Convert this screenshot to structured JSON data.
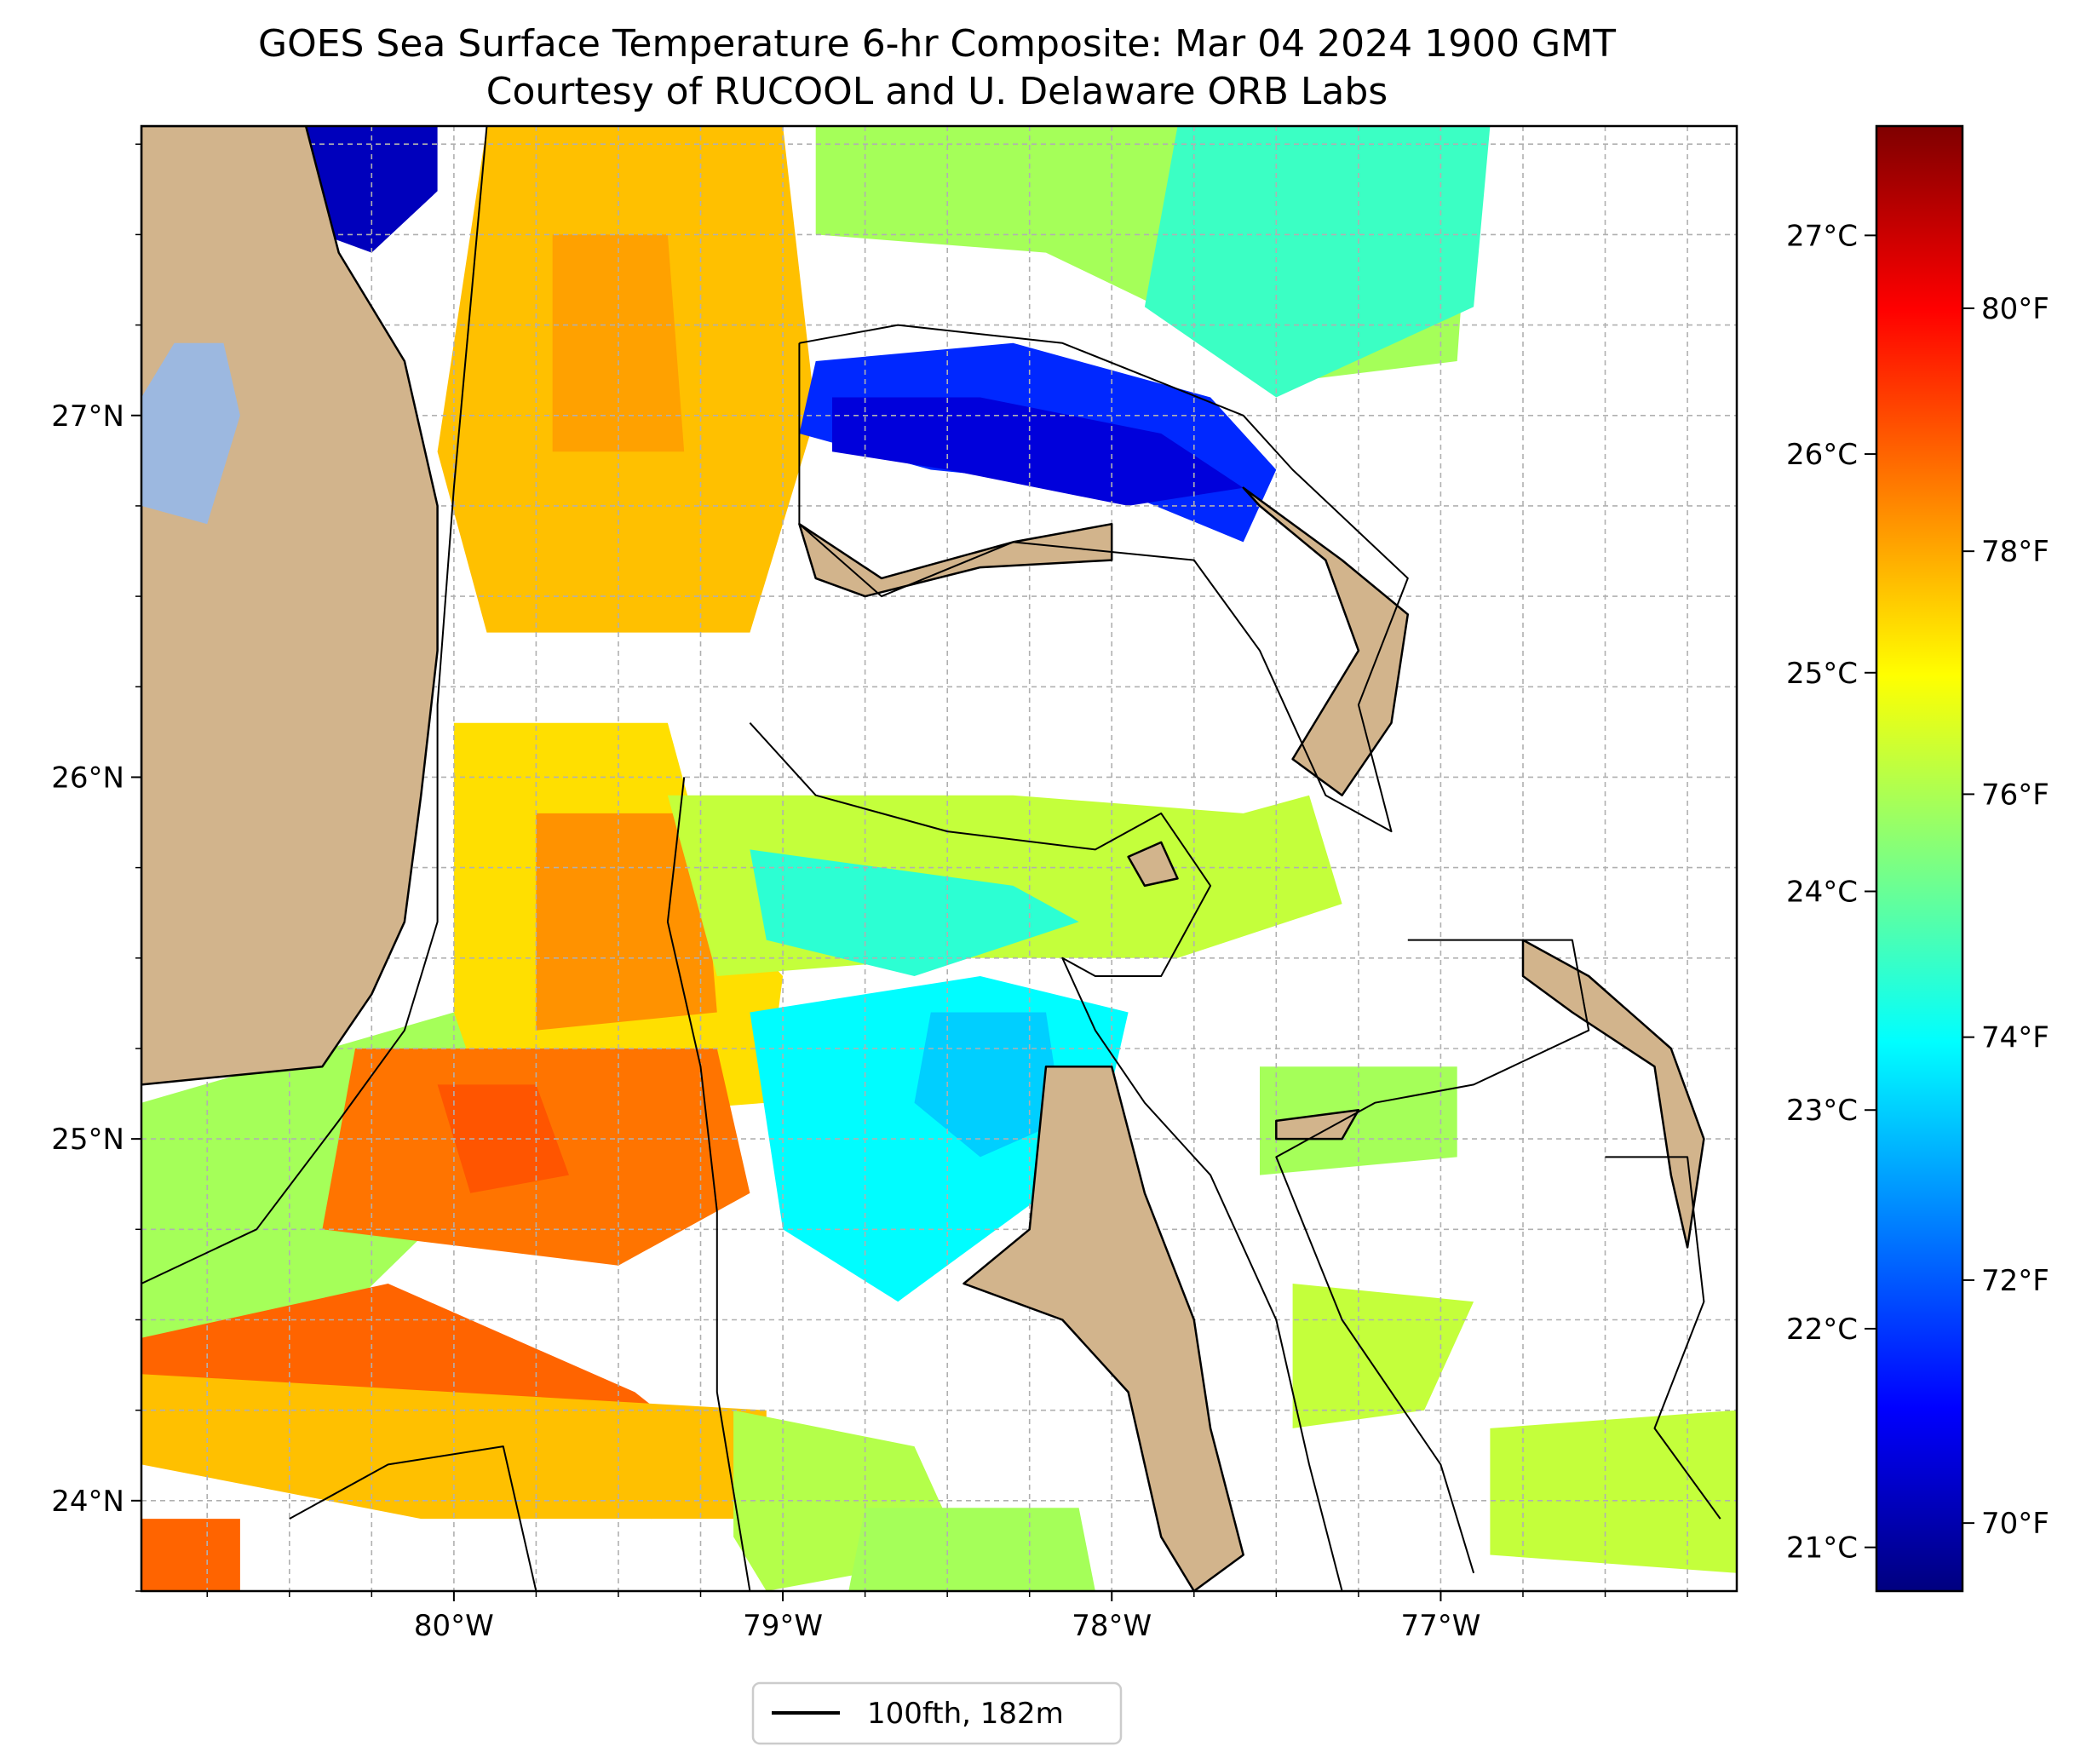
{
  "title": {
    "line1": "GOES Sea Surface Temperature 6-hr Composite: Mar 04 2024 1900 GMT",
    "line2": "Courtesy of RUCOOL and U. Delaware ORB Labs"
  },
  "colors": {
    "land": "#d2b48c",
    "lake": "#9cb8e0",
    "ocean_missing": "#ffffff",
    "gridline": "#b0b0b0",
    "contour": "#000000",
    "frame": "#000000"
  },
  "map": {
    "lon_range": [
      -80.95,
      -76.1
    ],
    "lat_range": [
      23.75,
      27.8
    ],
    "lon_ticks": [
      {
        "value": -80,
        "label": "80°W"
      },
      {
        "value": -79,
        "label": "79°W"
      },
      {
        "value": -78,
        "label": "78°W"
      },
      {
        "value": -77,
        "label": "77°W"
      }
    ],
    "lat_ticks": [
      {
        "value": 24,
        "label": "24°N"
      },
      {
        "value": 25,
        "label": "25°N"
      },
      {
        "value": 26,
        "label": "26°N"
      },
      {
        "value": 27,
        "label": "27°N"
      }
    ],
    "grid_step_deg": 0.25
  },
  "colorbar": {
    "colormap": "jet",
    "range_c": [
      20.8,
      27.5
    ],
    "stops": [
      "#00007f",
      "#0000ff",
      "#007fff",
      "#00ffff",
      "#7fff7f",
      "#ffff00",
      "#ff7f00",
      "#ff0000",
      "#7f0000"
    ],
    "celsius_ticks": [
      {
        "value": 21,
        "label": "21°C"
      },
      {
        "value": 22,
        "label": "22°C"
      },
      {
        "value": 23,
        "label": "23°C"
      },
      {
        "value": 24,
        "label": "24°C"
      },
      {
        "value": 25,
        "label": "25°C"
      },
      {
        "value": 26,
        "label": "26°C"
      },
      {
        "value": 27,
        "label": "27°C"
      }
    ],
    "fahrenheit_ticks": [
      {
        "value": 70,
        "label": "70°F"
      },
      {
        "value": 72,
        "label": "72°F"
      },
      {
        "value": 74,
        "label": "74°F"
      },
      {
        "value": 76,
        "label": "76°F"
      },
      {
        "value": 78,
        "label": "78°F"
      },
      {
        "value": 80,
        "label": "80°F"
      }
    ]
  },
  "legend": {
    "entries": [
      {
        "label": "100fth, 182m",
        "line_color": "#000000"
      }
    ]
  },
  "sst_patches": [
    {
      "name": "florida-current-north",
      "temp_c": 25.4,
      "points": [
        [
          -79.9,
          27.8
        ],
        [
          -79.0,
          27.8
        ],
        [
          -78.9,
          27.0
        ],
        [
          -79.1,
          26.4
        ],
        [
          -79.9,
          26.4
        ],
        [
          -80.05,
          26.9
        ]
      ]
    },
    {
      "name": "north-current-warm-core",
      "temp_c": 25.6,
      "points": [
        [
          -79.7,
          27.5
        ],
        [
          -79.35,
          27.5
        ],
        [
          -79.3,
          26.9
        ],
        [
          -79.7,
          26.9
        ]
      ]
    },
    {
      "name": "northeast-green",
      "temp_c": 24.4,
      "points": [
        [
          -78.9,
          27.8
        ],
        [
          -76.9,
          27.8
        ],
        [
          -76.95,
          27.15
        ],
        [
          -77.4,
          27.1
        ],
        [
          -78.2,
          27.45
        ],
        [
          -78.9,
          27.5
        ]
      ]
    },
    {
      "name": "northeast-cyan",
      "temp_c": 23.7,
      "points": [
        [
          -77.8,
          27.8
        ],
        [
          -76.85,
          27.8
        ],
        [
          -76.9,
          27.3
        ],
        [
          -77.5,
          27.05
        ],
        [
          -77.9,
          27.3
        ]
      ]
    },
    {
      "name": "little-bahama-blue",
      "temp_c": 21.9,
      "points": [
        [
          -78.9,
          27.15
        ],
        [
          -78.3,
          27.2
        ],
        [
          -77.7,
          27.05
        ],
        [
          -77.5,
          26.85
        ],
        [
          -77.6,
          26.65
        ],
        [
          -78.0,
          26.8
        ],
        [
          -78.55,
          26.85
        ],
        [
          -78.95,
          26.95
        ]
      ]
    },
    {
      "name": "little-bahama-deep",
      "temp_c": 21.4,
      "points": [
        [
          -78.85,
          27.05
        ],
        [
          -78.4,
          27.05
        ],
        [
          -77.85,
          26.95
        ],
        [
          -77.6,
          26.8
        ],
        [
          -77.95,
          26.75
        ],
        [
          -78.5,
          26.85
        ],
        [
          -78.85,
          26.9
        ]
      ]
    },
    {
      "name": "nw-coastal-blue",
      "temp_c": 21.2,
      "points": [
        [
          -80.45,
          27.8
        ],
        [
          -80.05,
          27.8
        ],
        [
          -80.05,
          27.62
        ],
        [
          -80.25,
          27.45
        ],
        [
          -80.4,
          27.5
        ]
      ]
    },
    {
      "name": "straits-yellow-north",
      "temp_c": 25.2,
      "points": [
        [
          -80.0,
          26.15
        ],
        [
          -79.35,
          26.15
        ],
        [
          -79.2,
          25.65
        ],
        [
          -79.0,
          25.45
        ],
        [
          -79.05,
          25.1
        ],
        [
          -79.75,
          25.05
        ],
        [
          -80.0,
          25.25
        ]
      ]
    },
    {
      "name": "straits-orange-west",
      "temp_c": 25.7,
      "points": [
        [
          -79.75,
          25.9
        ],
        [
          -79.25,
          25.9
        ],
        [
          -79.2,
          25.35
        ],
        [
          -79.75,
          25.3
        ]
      ]
    },
    {
      "name": "fl-keys-green-west",
      "temp_c": 24.4,
      "points": [
        [
          -80.95,
          25.1
        ],
        [
          -80.0,
          25.35
        ],
        [
          -79.85,
          24.95
        ],
        [
          -80.3,
          24.55
        ],
        [
          -80.95,
          24.35
        ]
      ]
    },
    {
      "name": "straits-orange-center",
      "temp_c": 25.9,
      "points": [
        [
          -80.3,
          25.25
        ],
        [
          -79.2,
          25.25
        ],
        [
          -79.1,
          24.85
        ],
        [
          -79.5,
          24.65
        ],
        [
          -80.4,
          24.75
        ]
      ]
    },
    {
      "name": "straits-deep-orange",
      "temp_c": 26.1,
      "points": [
        [
          -80.05,
          25.15
        ],
        [
          -79.75,
          25.15
        ],
        [
          -79.65,
          24.9
        ],
        [
          -79.95,
          24.85
        ]
      ]
    },
    {
      "name": "florida-keys-orange",
      "temp_c": 26.0,
      "points": [
        [
          -80.95,
          24.45
        ],
        [
          -80.2,
          24.6
        ],
        [
          -79.45,
          24.3
        ],
        [
          -79.1,
          24.05
        ],
        [
          -79.4,
          23.95
        ],
        [
          -80.1,
          24.15
        ],
        [
          -80.95,
          24.1
        ]
      ]
    },
    {
      "name": "florida-keys-band",
      "temp_c": 25.4,
      "points": [
        [
          -80.95,
          24.35
        ],
        [
          -79.05,
          24.25
        ],
        [
          -79.05,
          23.95
        ],
        [
          -80.1,
          23.95
        ],
        [
          -80.95,
          24.1
        ]
      ]
    },
    {
      "name": "sw-corner-orange",
      "temp_c": 26.0,
      "points": [
        [
          -80.95,
          23.95
        ],
        [
          -80.65,
          23.95
        ],
        [
          -80.65,
          23.75
        ],
        [
          -80.95,
          23.75
        ]
      ]
    },
    {
      "name": "central-green",
      "temp_c": 24.6,
      "points": [
        [
          -79.35,
          25.95
        ],
        [
          -78.3,
          25.95
        ],
        [
          -77.6,
          25.9
        ],
        [
          -77.4,
          25.95
        ],
        [
          -77.3,
          25.65
        ],
        [
          -77.8,
          25.5
        ],
        [
          -78.5,
          25.5
        ],
        [
          -79.2,
          25.45
        ]
      ]
    },
    {
      "name": "central-cyan",
      "temp_c": 23.6,
      "points": [
        [
          -79.1,
          25.8
        ],
        [
          -78.3,
          25.7
        ],
        [
          -78.1,
          25.6
        ],
        [
          -78.6,
          25.45
        ],
        [
          -79.05,
          25.55
        ]
      ]
    },
    {
      "name": "andros-north-cyan",
      "temp_c": 23.3,
      "points": [
        [
          -79.1,
          25.35
        ],
        [
          -78.4,
          25.45
        ],
        [
          -77.95,
          25.35
        ],
        [
          -78.05,
          24.95
        ],
        [
          -78.65,
          24.55
        ],
        [
          -79.0,
          24.75
        ]
      ]
    },
    {
      "name": "andros-north-blue",
      "temp_c": 23.0,
      "points": [
        [
          -78.55,
          25.35
        ],
        [
          -78.2,
          25.35
        ],
        [
          -78.15,
          25.05
        ],
        [
          -78.4,
          24.95
        ],
        [
          -78.6,
          25.1
        ]
      ]
    },
    {
      "name": "tongue-ocean-green",
      "temp_c": 24.4,
      "points": [
        [
          -77.55,
          25.2
        ],
        [
          -76.95,
          25.2
        ],
        [
          -76.95,
          24.95
        ],
        [
          -77.55,
          24.9
        ]
      ]
    },
    {
      "name": "exumas-green",
      "temp_c": 24.6,
      "points": [
        [
          -77.45,
          24.6
        ],
        [
          -76.9,
          24.55
        ],
        [
          -77.05,
          24.25
        ],
        [
          -77.45,
          24.2
        ]
      ]
    },
    {
      "name": "sw-andros-green",
      "temp_c": 24.5,
      "points": [
        [
          -79.15,
          24.25
        ],
        [
          -78.6,
          24.15
        ],
        [
          -78.45,
          23.85
        ],
        [
          -79.05,
          23.75
        ],
        [
          -79.15,
          23.9
        ]
      ]
    },
    {
      "name": "bottom-green",
      "temp_c": 24.4,
      "points": [
        [
          -78.75,
          23.98
        ],
        [
          -78.1,
          23.98
        ],
        [
          -78.05,
          23.75
        ],
        [
          -78.8,
          23.75
        ]
      ]
    },
    {
      "name": "se-green",
      "temp_c": 24.6,
      "points": [
        [
          -76.85,
          24.2
        ],
        [
          -76.1,
          24.25
        ],
        [
          -76.1,
          23.8
        ],
        [
          -76.85,
          23.85
        ]
      ]
    }
  ],
  "land_areas": [
    {
      "name": "florida-mainland",
      "points": [
        [
          -80.95,
          27.8
        ],
        [
          -80.45,
          27.8
        ],
        [
          -80.35,
          27.45
        ],
        [
          -80.15,
          27.15
        ],
        [
          -80.05,
          26.75
        ],
        [
          -80.05,
          26.35
        ],
        [
          -80.1,
          25.95
        ],
        [
          -80.15,
          25.6
        ],
        [
          -80.25,
          25.4
        ],
        [
          -80.4,
          25.2
        ],
        [
          -80.95,
          25.15
        ]
      ]
    },
    {
      "name": "grand-bahama",
      "points": [
        [
          -78.95,
          26.7
        ],
        [
          -78.7,
          26.55
        ],
        [
          -78.3,
          26.65
        ],
        [
          -78.0,
          26.7
        ],
        [
          -78.0,
          26.6
        ],
        [
          -78.4,
          26.58
        ],
        [
          -78.75,
          26.5
        ],
        [
          -78.9,
          26.55
        ]
      ]
    },
    {
      "name": "great-abaco",
      "points": [
        [
          -77.6,
          26.8
        ],
        [
          -77.3,
          26.6
        ],
        [
          -77.1,
          26.45
        ],
        [
          -77.15,
          26.15
        ],
        [
          -77.3,
          25.95
        ],
        [
          -77.45,
          26.05
        ],
        [
          -77.25,
          26.35
        ],
        [
          -77.35,
          26.6
        ],
        [
          -77.55,
          26.75
        ]
      ]
    },
    {
      "name": "berry-islands",
      "points": [
        [
          -77.95,
          25.78
        ],
        [
          -77.85,
          25.82
        ],
        [
          -77.8,
          25.72
        ],
        [
          -77.9,
          25.7
        ]
      ]
    },
    {
      "name": "andros-island",
      "points": [
        [
          -78.2,
          25.2
        ],
        [
          -78.0,
          25.2
        ],
        [
          -77.9,
          24.85
        ],
        [
          -77.75,
          24.5
        ],
        [
          -77.7,
          24.2
        ],
        [
          -77.6,
          23.85
        ],
        [
          -77.75,
          23.75
        ],
        [
          -77.85,
          23.9
        ],
        [
          -77.95,
          24.3
        ],
        [
          -78.15,
          24.5
        ],
        [
          -78.45,
          24.6
        ],
        [
          -78.25,
          24.75
        ]
      ]
    },
    {
      "name": "eleuthera",
      "points": [
        [
          -76.75,
          25.55
        ],
        [
          -76.55,
          25.45
        ],
        [
          -76.3,
          25.25
        ],
        [
          -76.2,
          25.0
        ],
        [
          -76.25,
          24.7
        ],
        [
          -76.3,
          24.9
        ],
        [
          -76.35,
          25.2
        ],
        [
          -76.6,
          25.35
        ],
        [
          -76.75,
          25.45
        ]
      ]
    },
    {
      "name": "nassau-new-providence",
      "points": [
        [
          -77.5,
          25.05
        ],
        [
          -77.25,
          25.08
        ],
        [
          -77.3,
          25.0
        ],
        [
          -77.5,
          25.0
        ]
      ]
    }
  ],
  "lake": {
    "name": "lake-okeechobee",
    "points": [
      [
        -80.95,
        27.05
      ],
      [
        -80.85,
        27.2
      ],
      [
        -80.7,
        27.2
      ],
      [
        -80.65,
        27.0
      ],
      [
        -80.75,
        26.7
      ],
      [
        -80.95,
        26.75
      ]
    ]
  },
  "contours_100fth": [
    {
      "name": "florida-shelf-edge",
      "points": [
        [
          -79.9,
          27.8
        ],
        [
          -79.95,
          27.3
        ],
        [
          -80.0,
          26.8
        ],
        [
          -80.05,
          26.2
        ],
        [
          -80.05,
          25.6
        ],
        [
          -80.15,
          25.3
        ],
        [
          -80.35,
          25.05
        ],
        [
          -80.6,
          24.75
        ],
        [
          -80.95,
          24.6
        ]
      ]
    },
    {
      "name": "little-bahama-bank",
      "points": [
        [
          -78.95,
          27.2
        ],
        [
          -78.65,
          27.25
        ],
        [
          -78.15,
          27.2
        ],
        [
          -77.6,
          27.0
        ],
        [
          -77.45,
          26.85
        ],
        [
          -77.1,
          26.55
        ],
        [
          -77.25,
          26.2
        ],
        [
          -77.15,
          25.85
        ],
        [
          -77.35,
          25.95
        ],
        [
          -77.55,
          26.35
        ],
        [
          -77.75,
          26.6
        ],
        [
          -78.3,
          26.65
        ],
        [
          -78.7,
          26.5
        ],
        [
          -78.95,
          26.7
        ],
        [
          -78.95,
          27.2
        ]
      ]
    },
    {
      "name": "great-bahama-bank-west",
      "points": [
        [
          -79.1,
          26.15
        ],
        [
          -78.9,
          25.95
        ],
        [
          -78.5,
          25.85
        ],
        [
          -78.05,
          25.8
        ],
        [
          -77.85,
          25.9
        ],
        [
          -77.7,
          25.7
        ],
        [
          -77.85,
          25.45
        ],
        [
          -78.05,
          25.45
        ],
        [
          -78.15,
          25.5
        ],
        [
          -78.05,
          25.3
        ],
        [
          -77.9,
          25.1
        ],
        [
          -77.7,
          24.9
        ],
        [
          -77.5,
          24.5
        ],
        [
          -77.4,
          24.1
        ],
        [
          -77.3,
          23.75
        ]
      ]
    },
    {
      "name": "straits-east-edge",
      "points": [
        [
          -79.3,
          26.0
        ],
        [
          -79.35,
          25.6
        ],
        [
          -79.25,
          25.2
        ],
        [
          -79.2,
          24.8
        ],
        [
          -79.2,
          24.3
        ],
        [
          -79.1,
          23.75
        ]
      ]
    },
    {
      "name": "florida-keys-reef-edge",
      "points": [
        [
          -80.5,
          23.95
        ],
        [
          -80.2,
          24.1
        ],
        [
          -79.85,
          24.15
        ],
        [
          -79.8,
          23.95
        ],
        [
          -79.75,
          23.75
        ]
      ]
    },
    {
      "name": "tongue-of-ocean",
      "points": [
        [
          -77.1,
          25.55
        ],
        [
          -76.6,
          25.55
        ],
        [
          -76.55,
          25.3
        ],
        [
          -76.9,
          25.15
        ],
        [
          -77.2,
          25.1
        ],
        [
          -77.5,
          24.95
        ],
        [
          -77.3,
          24.5
        ],
        [
          -77.0,
          24.1
        ],
        [
          -76.9,
          23.8
        ]
      ]
    },
    {
      "name": "exuma-sound",
      "points": [
        [
          -76.5,
          24.95
        ],
        [
          -76.25,
          24.95
        ],
        [
          -76.2,
          24.55
        ],
        [
          -76.35,
          24.2
        ],
        [
          -76.15,
          23.95
        ]
      ]
    }
  ]
}
